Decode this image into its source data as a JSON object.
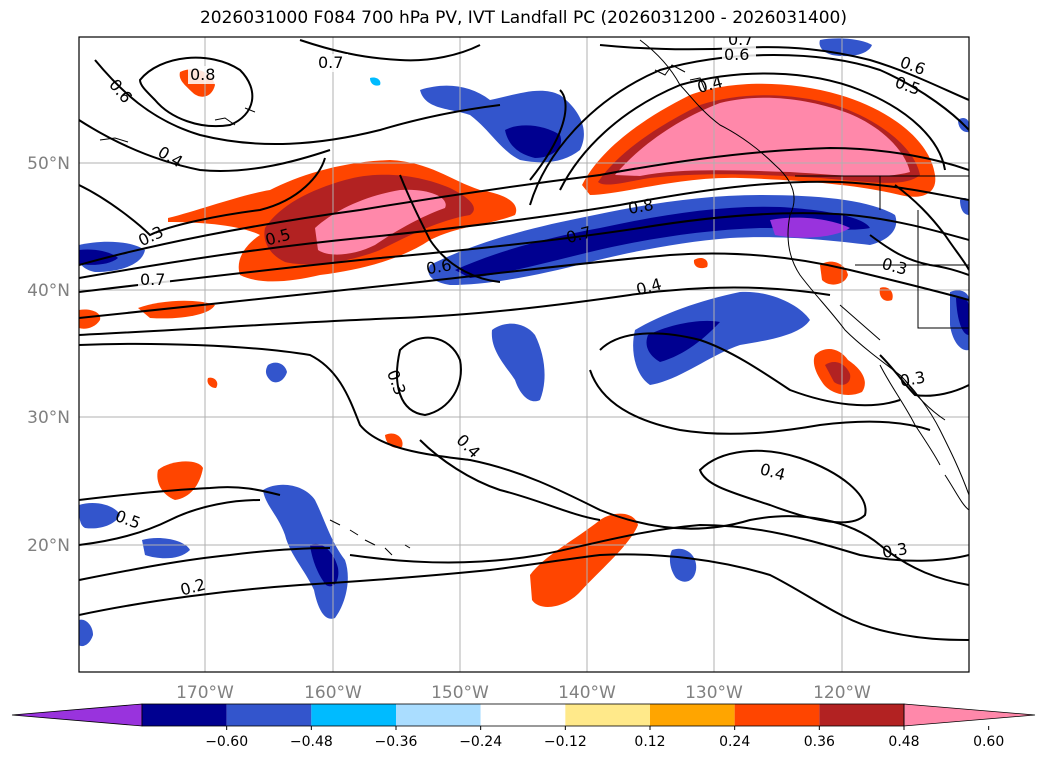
{
  "title": "2026031000 F084 700 hPa PV, IVT Landfall PC (2026031200 - 2026031400)",
  "axes": {
    "lon_ticks": [
      "170°W",
      "160°W",
      "150°W",
      "140°W",
      "130°W",
      "120°W"
    ],
    "lat_ticks": [
      "50°N",
      "40°N",
      "30°N",
      "20°N"
    ],
    "lon_range": [
      -180,
      -110
    ],
    "lat_range": [
      10,
      60
    ],
    "grid": true
  },
  "colorbar": {
    "tick_labels": [
      "−0.60",
      "−0.48",
      "−0.36",
      "−0.24",
      "−0.12",
      "0.12",
      "0.24",
      "0.36",
      "0.48",
      "0.60"
    ],
    "colors": [
      "#9933dd",
      "#000090",
      "#3355cc",
      "#00bbff",
      "#aaddff",
      "#ffffff",
      "#ffe98a",
      "#ffa500",
      "#ff4500",
      "#b22222",
      "#ff88aa"
    ],
    "extend": "both"
  },
  "contour_labels": [
    {
      "text": "0.8"
    },
    {
      "text": "0.7"
    },
    {
      "text": "0.6"
    },
    {
      "text": "0.4"
    },
    {
      "text": "0.3"
    },
    {
      "text": "0.5"
    },
    {
      "text": "0.7"
    },
    {
      "text": "0.6"
    },
    {
      "text": "0.7"
    },
    {
      "text": "0.8"
    },
    {
      "text": "0.4"
    },
    {
      "text": "0.7"
    },
    {
      "text": "0.6"
    },
    {
      "text": "0.6"
    },
    {
      "text": "0.5"
    },
    {
      "text": "0.4"
    },
    {
      "text": "0.3"
    },
    {
      "text": "0.3"
    },
    {
      "text": "0.4"
    },
    {
      "text": "0.5"
    },
    {
      "text": "0.4"
    },
    {
      "text": "0.2"
    },
    {
      "text": "0.3"
    },
    {
      "text": "0.3"
    }
  ]
}
